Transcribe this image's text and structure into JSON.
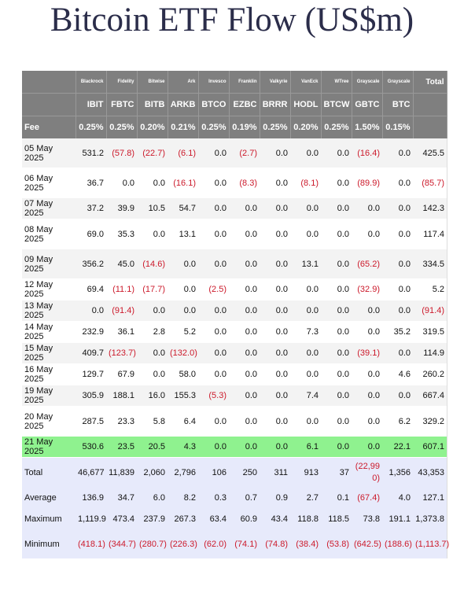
{
  "title": "Bitcoin ETF Flow (US$m)",
  "columns": [
    {
      "issuer": "Blackrock",
      "ticker": "IBIT",
      "fee": "0.25%"
    },
    {
      "issuer": "Fidelity",
      "ticker": "FBTC",
      "fee": "0.25%"
    },
    {
      "issuer": "Bitwise",
      "ticker": "BITB",
      "fee": "0.20%"
    },
    {
      "issuer": "Ark",
      "ticker": "ARKB",
      "fee": "0.21%"
    },
    {
      "issuer": "Invesco",
      "ticker": "BTCO",
      "fee": "0.25%"
    },
    {
      "issuer": "Franklin",
      "ticker": "EZBC",
      "fee": "0.19%"
    },
    {
      "issuer": "Valkyrie",
      "ticker": "BRRR",
      "fee": "0.25%"
    },
    {
      "issuer": "VanEck",
      "ticker": "HODL",
      "fee": "0.20%"
    },
    {
      "issuer": "WTree",
      "ticker": "BTCW",
      "fee": "0.25%"
    },
    {
      "issuer": "Grayscale",
      "ticker": "GBTC",
      "fee": "1.50%"
    },
    {
      "issuer": "Grayscale",
      "ticker": "BTC",
      "fee": "0.15%"
    }
  ],
  "total_header": "Total",
  "fee_label": "Fee",
  "rows": [
    {
      "date": "05 May 2025",
      "values": [
        "531.2",
        "(57.8)",
        "(22.7)",
        "(6.1)",
        "0.0",
        "(2.7)",
        "0.0",
        "0.0",
        "0.0",
        "(16.4)",
        "0.0"
      ],
      "total": "425.5"
    },
    {
      "date": "06 May 2025",
      "values": [
        "36.7",
        "0.0",
        "0.0",
        "(16.1)",
        "0.0",
        "(8.3)",
        "0.0",
        "(8.1)",
        "0.0",
        "(89.9)",
        "0.0"
      ],
      "total": "(85.7)"
    },
    {
      "date": "07 May 2025",
      "values": [
        "37.2",
        "39.9",
        "10.5",
        "54.7",
        "0.0",
        "0.0",
        "0.0",
        "0.0",
        "0.0",
        "0.0",
        "0.0"
      ],
      "total": "142.3"
    },
    {
      "date": "08 May 2025",
      "values": [
        "69.0",
        "35.3",
        "0.0",
        "13.1",
        "0.0",
        "0.0",
        "0.0",
        "0.0",
        "0.0",
        "0.0",
        "0.0"
      ],
      "total": "117.4"
    },
    {
      "date": "09 May 2025",
      "values": [
        "356.2",
        "45.0",
        "(14.6)",
        "0.0",
        "0.0",
        "0.0",
        "0.0",
        "13.1",
        "0.0",
        "(65.2)",
        "0.0"
      ],
      "total": "334.5"
    },
    {
      "date": "12 May 2025",
      "values": [
        "69.4",
        "(11.1)",
        "(17.7)",
        "0.0",
        "(2.5)",
        "0.0",
        "0.0",
        "0.0",
        "0.0",
        "(32.9)",
        "0.0"
      ],
      "total": "5.2"
    },
    {
      "date": "13 May 2025",
      "values": [
        "0.0",
        "(91.4)",
        "0.0",
        "0.0",
        "0.0",
        "0.0",
        "0.0",
        "0.0",
        "0.0",
        "0.0",
        "0.0"
      ],
      "total": "(91.4)"
    },
    {
      "date": "14 May 2025",
      "values": [
        "232.9",
        "36.1",
        "2.8",
        "5.2",
        "0.0",
        "0.0",
        "0.0",
        "7.3",
        "0.0",
        "0.0",
        "35.2"
      ],
      "total": "319.5"
    },
    {
      "date": "15 May 2025",
      "values": [
        "409.7",
        "(123.7)",
        "0.0",
        "(132.0)",
        "0.0",
        "0.0",
        "0.0",
        "0.0",
        "0.0",
        "(39.1)",
        "0.0"
      ],
      "total": "114.9"
    },
    {
      "date": "16 May 2025",
      "values": [
        "129.7",
        "67.9",
        "0.0",
        "58.0",
        "0.0",
        "0.0",
        "0.0",
        "0.0",
        "0.0",
        "0.0",
        "4.6"
      ],
      "total": "260.2"
    },
    {
      "date": "19 May 2025",
      "values": [
        "305.9",
        "188.1",
        "16.0",
        "155.3",
        "(5.3)",
        "0.0",
        "0.0",
        "7.4",
        "0.0",
        "0.0",
        "0.0"
      ],
      "total": "667.4"
    },
    {
      "date": "20 May 2025",
      "values": [
        "287.5",
        "23.3",
        "5.8",
        "6.4",
        "0.0",
        "0.0",
        "0.0",
        "0.0",
        "0.0",
        "0.0",
        "6.2"
      ],
      "total": "329.2"
    },
    {
      "date": "21 May 2025",
      "values": [
        "530.6",
        "23.5",
        "20.5",
        "4.3",
        "0.0",
        "0.0",
        "0.0",
        "6.1",
        "0.0",
        "0.0",
        "22.1"
      ],
      "total": "607.1",
      "highlight": true
    }
  ],
  "summary": [
    {
      "label": "Total",
      "values": [
        "46,677",
        "11,839",
        "2,060",
        "2,796",
        "106",
        "250",
        "311",
        "913",
        "37",
        "(22,990)",
        "1,356"
      ],
      "total": "43,353"
    },
    {
      "label": "Average",
      "values": [
        "136.9",
        "34.7",
        "6.0",
        "8.2",
        "0.3",
        "0.7",
        "0.9",
        "2.7",
        "0.1",
        "(67.4)",
        "4.0"
      ],
      "total": "127.1"
    },
    {
      "label": "Maximum",
      "values": [
        "1,119.9",
        "473.4",
        "237.9",
        "267.3",
        "63.4",
        "60.9",
        "43.4",
        "118.8",
        "118.5",
        "73.8",
        "191.1"
      ],
      "total": "1,373.8"
    },
    {
      "label": "Minimum",
      "values": [
        "(418.1)",
        "(344.7)",
        "(280.7)",
        "(226.3)",
        "(62.0)",
        "(74.1)",
        "(74.8)",
        "(38.4)",
        "(53.8)",
        "(642.5)",
        "(188.6)"
      ],
      "total": "(1,113.7)"
    }
  ],
  "colors": {
    "header_bg": "#7f7f7f",
    "negative": "#cc1a2b",
    "highlight": "#8ff28f",
    "summary_bg": "#e7eafb",
    "title": "#2b2d4a"
  }
}
